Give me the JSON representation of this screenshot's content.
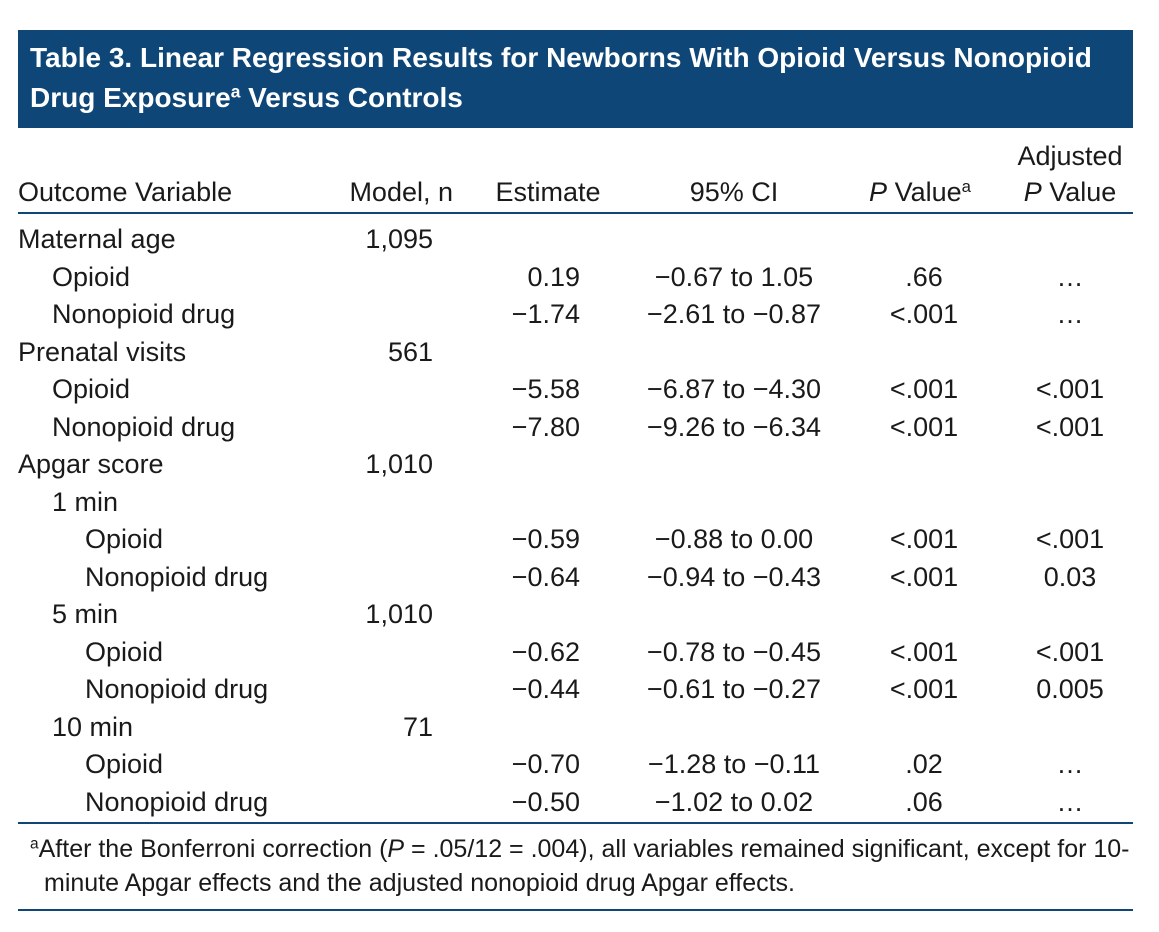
{
  "title": {
    "text_before": "Table 3. Linear Regression Results for Newborns With Opioid Versus Nonopioid Drug Exposure",
    "superscript": "a",
    "text_after": " Versus Controls"
  },
  "header": {
    "outcome": "Outcome Variable",
    "n": "Model, n",
    "estimate": "Estimate",
    "ci": "95% CI",
    "p": {
      "italic": "P",
      "text": " Value",
      "superscript": "a"
    },
    "adj_p": {
      "line1": "Adjusted",
      "italic": "P",
      "text": " Value"
    }
  },
  "sections": [
    {
      "label": "Maternal age",
      "n": "1,095",
      "rows": [
        {
          "label": "Opioid",
          "estimate": "0.19",
          "ci": "−0.67 to 1.05",
          "p": ".66",
          "adj_p": "…"
        },
        {
          "label": "Nonopioid drug",
          "estimate": "−1.74",
          "ci": "−2.61 to −0.87",
          "p": "<.001",
          "adj_p": "…"
        }
      ]
    },
    {
      "label": "Prenatal visits",
      "n": "561",
      "rows": [
        {
          "label": "Opioid",
          "estimate": "−5.58",
          "ci": "−6.87 to −4.30",
          "p": "<.001",
          "adj_p": "<.001"
        },
        {
          "label": "Nonopioid drug",
          "estimate": "−7.80",
          "ci": "−9.26 to −6.34",
          "p": "<.001",
          "adj_p": "<.001"
        }
      ]
    },
    {
      "label": "Apgar score",
      "n": "1,010",
      "subgroups": [
        {
          "label": "1 min",
          "rows": [
            {
              "label": "Opioid",
              "estimate": "−0.59",
              "ci": "−0.88 to 0.00",
              "p": "<.001",
              "adj_p": "<.001"
            },
            {
              "label": "Nonopioid drug",
              "estimate": "−0.64",
              "ci": "−0.94 to −0.43",
              "p": "<.001",
              "adj_p": "0.03"
            }
          ]
        },
        {
          "label": "5 min",
          "n": "1,010",
          "rows": [
            {
              "label": "Opioid",
              "estimate": "−0.62",
              "ci": "−0.78 to −0.45",
              "p": "<.001",
              "adj_p": "<.001"
            },
            {
              "label": "Nonopioid drug",
              "estimate": "−0.44",
              "ci": "−0.61 to −0.27",
              "p": "<.001",
              "adj_p": "0.005"
            }
          ]
        },
        {
          "label": "10 min",
          "n": "71",
          "rows": [
            {
              "label": "Opioid",
              "estimate": "−0.70",
              "ci": "−1.28 to −0.11",
              "p": ".02",
              "adj_p": "…"
            },
            {
              "label": "Nonopioid drug",
              "estimate": "−0.50",
              "ci": "−1.02 to 0.02",
              "p": ".06",
              "adj_p": "…"
            }
          ]
        }
      ]
    }
  ],
  "footnote": {
    "marker": "a",
    "text_before": "After the Bonferroni correction (",
    "italic": "P",
    "text_after": " = .05/12 = .004), all variables remained significant, except for 10-minute Apgar effects and the adjusted nonopioid drug Apgar effects."
  }
}
